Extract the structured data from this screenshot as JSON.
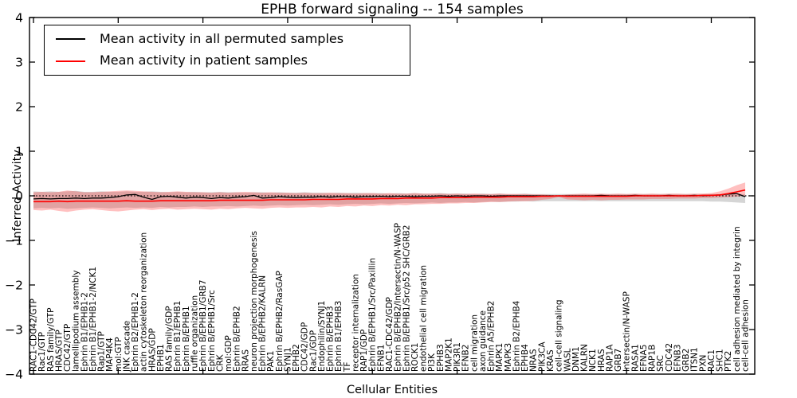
{
  "chart_data": {
    "type": "line",
    "title": "EPHB forward signaling -- 154 samples",
    "xlabel": "Cellular Entities",
    "ylabel": "Inferred Activity",
    "ylim": [
      -4,
      4
    ],
    "yticks": [
      4,
      3,
      2,
      1,
      0,
      -1,
      -2,
      -3,
      -4
    ],
    "ytick_labels": [
      "4",
      "3",
      "2",
      "1",
      "0",
      "−1",
      "−2",
      "−3",
      "−4"
    ],
    "zero_line": {
      "style": "dotted",
      "color": "#000000",
      "y": 0
    },
    "legend_position": "upper-left",
    "legend": [
      {
        "label": "Mean activity in all permuted samples",
        "color": "#000000"
      },
      {
        "label": "Mean activity in patient samples",
        "color": "#ff0000"
      }
    ],
    "colors": {
      "permuted_line": "#000000",
      "patient_line": "#ff0000",
      "permuted_band_fill": "rgba(150,150,150,0.40)",
      "patient_band_fill": "rgba(255,45,45,0.30)",
      "axis": "#000000"
    },
    "categories": [
      "RAC1-CDC42/GTP",
      "Rac1/GTP",
      "RAS family/GTP",
      "HRAS/GTP",
      "CDC42/GTP",
      "lamellipodium assembly",
      "Ephrin B1/EPHB1-2",
      "Ephrin B1/EPHB1-2/NCK1",
      "Rap1/GTP",
      "MAP4K4",
      "mol:GTP",
      "JNK cascade",
      "Ephrin B2/EPHB1-2",
      "actin cytoskeleton reorganization",
      "HRAS/GDP",
      "EPHB1",
      "RAS family/GDP",
      "Ephrin B1/EPHB1",
      "Ephrin B/EPHB1",
      "ruffle organization",
      "Ephrin B/EPHB1/GRB7",
      "Ephrin B/EPHB1/Src",
      "CRK",
      "mol:GDP",
      "Ephrin B/EPHB2",
      "RRAS",
      "neuron projection morphogenesis",
      "Ephrin B/EPHB2/KALRN",
      "PAK1",
      "Ephrin B/EPHB2/RasGAP",
      "SYNJ1",
      "EPHB2",
      "CDC42/GDP",
      "Rac1/GDP",
      "Endophilin/SYNJ1",
      "Ephrin B/EPHB3",
      "Ephrin B1/EPHB3",
      "TF",
      "receptor internalization",
      "RAP1/GDP",
      "Ephrin B/EPHB1/Src/Paxillin",
      "EFNB1",
      "RAC1-CDC42/GDP",
      "Ephrin B/EPHB2/Intersectin/N-WASP",
      "Ephrin B/EPHB1/Src/p52 SHC/GRB2",
      "ROCK1",
      "endothelial cell migration",
      "PI3K",
      "EPHB3",
      "MAP2K1",
      "PIK3R1",
      "EFNB2",
      "cell migration",
      "axon guidance",
      "Ephrin A5/EPHB2",
      "MAPK1",
      "MAPK3",
      "Ephrin B2/EPHB4",
      "EPHB4",
      "NRAS",
      "PIK3CA",
      "KRAS",
      "cell-cell signaling",
      "WASL",
      "DNM1",
      "KALRN",
      "NCK1",
      "HRAS",
      "RAP1A",
      "GRB7",
      "Intersectin/N-WASP",
      "RASA1",
      "EFNA5",
      "RAP1B",
      "SRC",
      "CDC42",
      "EFNB3",
      "GRB2",
      "ITSN1",
      "PXN",
      "RAC1",
      "SHC1",
      "PTK2",
      "cell adhesion mediated by integrin",
      "cell-cell adhesion"
    ],
    "series": [
      {
        "name": "Mean activity in all permuted samples",
        "values": [
          -0.07,
          -0.06,
          -0.07,
          -0.06,
          -0.06,
          -0.05,
          -0.06,
          -0.05,
          -0.05,
          -0.04,
          -0.02,
          0.02,
          0.03,
          -0.03,
          -0.08,
          -0.02,
          -0.01,
          -0.03,
          -0.05,
          -0.03,
          -0.04,
          -0.06,
          -0.04,
          -0.05,
          -0.03,
          -0.02,
          0.01,
          -0.05,
          -0.04,
          -0.02,
          -0.03,
          -0.04,
          -0.03,
          -0.03,
          -0.02,
          -0.03,
          -0.02,
          -0.02,
          -0.03,
          -0.02,
          -0.02,
          -0.01,
          -0.02,
          -0.01,
          -0.01,
          -0.02,
          -0.01,
          -0.01,
          0.0,
          -0.01,
          0.0,
          -0.01,
          0.0,
          0.0,
          -0.01,
          0.0,
          0.0,
          0.0,
          0.0,
          0.0,
          0.0,
          0.0,
          0.0,
          0.0,
          0.0,
          0.0,
          0.0,
          0.01,
          0.0,
          0.0,
          0.0,
          0.01,
          0.0,
          0.0,
          0.0,
          0.01,
          0.0,
          0.0,
          0.01,
          0.0,
          0.01,
          0.02,
          0.04,
          0.05,
          -0.02
        ]
      },
      {
        "name": "Mean activity in patient samples",
        "values": [
          -0.13,
          -0.13,
          -0.13,
          -0.12,
          -0.13,
          -0.12,
          -0.12,
          -0.12,
          -0.12,
          -0.12,
          -0.12,
          -0.11,
          -0.12,
          -0.12,
          -0.12,
          -0.11,
          -0.11,
          -0.11,
          -0.11,
          -0.11,
          -0.11,
          -0.11,
          -0.1,
          -0.1,
          -0.1,
          -0.1,
          -0.1,
          -0.1,
          -0.09,
          -0.09,
          -0.09,
          -0.09,
          -0.09,
          -0.08,
          -0.08,
          -0.08,
          -0.08,
          -0.07,
          -0.07,
          -0.07,
          -0.07,
          -0.06,
          -0.06,
          -0.06,
          -0.05,
          -0.05,
          -0.05,
          -0.05,
          -0.04,
          -0.04,
          -0.04,
          -0.04,
          -0.03,
          -0.03,
          -0.03,
          -0.03,
          -0.02,
          -0.02,
          -0.02,
          -0.02,
          -0.01,
          -0.01,
          0.0,
          -0.01,
          -0.01,
          -0.01,
          -0.01,
          -0.01,
          -0.01,
          -0.01,
          -0.01,
          0.0,
          0.0,
          0.0,
          0.0,
          0.0,
          0.0,
          0.0,
          0.0,
          0.01,
          0.01,
          0.02,
          0.05,
          0.09,
          0.13
        ]
      }
    ],
    "bands": [
      {
        "name": "permuted-samples-band",
        "upper": [
          0.1,
          0.09,
          0.1,
          0.09,
          0.1,
          0.11,
          0.09,
          0.09,
          0.1,
          0.09,
          0.09,
          0.1,
          0.09,
          0.09,
          0.1,
          0.09,
          0.08,
          0.09,
          0.08,
          0.09,
          0.08,
          0.08,
          0.09,
          0.08,
          0.08,
          0.07,
          0.08,
          0.08,
          0.07,
          0.08,
          0.07,
          0.07,
          0.08,
          0.07,
          0.07,
          0.06,
          0.07,
          0.06,
          0.07,
          0.06,
          0.06,
          0.06,
          0.05,
          0.06,
          0.05,
          0.06,
          0.05,
          0.05,
          0.06,
          0.05,
          0.05,
          0.05,
          0.04,
          0.05,
          0.04,
          0.05,
          0.04,
          0.04,
          0.05,
          0.04,
          0.04,
          0.04,
          0.04,
          0.04,
          0.04,
          0.04,
          0.04,
          0.04,
          0.04,
          0.04,
          0.04,
          0.04,
          0.04,
          0.04,
          0.04,
          0.04,
          0.04,
          0.04,
          0.04,
          0.04,
          0.04,
          0.04,
          0.04,
          0.05,
          0.03
        ],
        "lower": [
          -0.28,
          -0.27,
          -0.28,
          -0.27,
          -0.29,
          -0.28,
          -0.27,
          -0.26,
          -0.27,
          -0.28,
          -0.27,
          -0.26,
          -0.27,
          -0.26,
          -0.27,
          -0.25,
          -0.26,
          -0.25,
          -0.25,
          -0.24,
          -0.25,
          -0.24,
          -0.24,
          -0.23,
          -0.24,
          -0.23,
          -0.22,
          -0.23,
          -0.22,
          -0.21,
          -0.22,
          -0.21,
          -0.2,
          -0.21,
          -0.2,
          -0.19,
          -0.2,
          -0.19,
          -0.18,
          -0.19,
          -0.18,
          -0.17,
          -0.18,
          -0.17,
          -0.16,
          -0.17,
          -0.16,
          -0.15,
          -0.16,
          -0.15,
          -0.15,
          -0.14,
          -0.15,
          -0.14,
          -0.13,
          -0.14,
          -0.13,
          -0.13,
          -0.12,
          -0.13,
          -0.12,
          -0.12,
          -0.12,
          -0.12,
          -0.12,
          -0.12,
          -0.12,
          -0.12,
          -0.12,
          -0.12,
          -0.12,
          -0.12,
          -0.12,
          -0.12,
          -0.12,
          -0.12,
          -0.12,
          -0.12,
          -0.12,
          -0.12,
          -0.13,
          -0.13,
          -0.14,
          -0.15,
          -0.16
        ]
      },
      {
        "name": "patient-samples-band",
        "upper": [
          0.08,
          0.09,
          0.08,
          0.09,
          0.12,
          0.1,
          0.08,
          0.08,
          0.09,
          0.1,
          0.11,
          0.12,
          0.11,
          0.1,
          0.09,
          0.08,
          0.09,
          0.1,
          0.09,
          0.08,
          0.08,
          0.07,
          0.08,
          0.07,
          0.08,
          0.09,
          0.08,
          0.07,
          0.08,
          0.07,
          0.07,
          0.06,
          0.07,
          0.06,
          0.06,
          0.07,
          0.06,
          0.06,
          0.05,
          0.06,
          0.06,
          0.05,
          0.06,
          0.05,
          0.05,
          0.06,
          0.05,
          0.05,
          0.05,
          0.04,
          0.05,
          0.04,
          0.05,
          0.04,
          0.04,
          0.05,
          0.04,
          0.04,
          0.04,
          0.03,
          0.03,
          0.02,
          0.01,
          0.03,
          0.04,
          0.05,
          0.04,
          0.05,
          0.04,
          0.05,
          0.04,
          0.05,
          0.04,
          0.05,
          0.04,
          0.05,
          0.05,
          0.04,
          0.05,
          0.05,
          0.06,
          0.1,
          0.16,
          0.24,
          0.3
        ],
        "lower": [
          -0.32,
          -0.33,
          -0.31,
          -0.34,
          -0.36,
          -0.33,
          -0.31,
          -0.3,
          -0.32,
          -0.34,
          -0.35,
          -0.33,
          -0.31,
          -0.3,
          -0.32,
          -0.3,
          -0.29,
          -0.31,
          -0.3,
          -0.29,
          -0.3,
          -0.31,
          -0.29,
          -0.3,
          -0.28,
          -0.27,
          -0.28,
          -0.29,
          -0.27,
          -0.26,
          -0.27,
          -0.26,
          -0.26,
          -0.25,
          -0.26,
          -0.24,
          -0.25,
          -0.23,
          -0.24,
          -0.22,
          -0.23,
          -0.21,
          -0.22,
          -0.2,
          -0.21,
          -0.19,
          -0.19,
          -0.18,
          -0.18,
          -0.17,
          -0.17,
          -0.16,
          -0.16,
          -0.15,
          -0.14,
          -0.14,
          -0.13,
          -0.12,
          -0.12,
          -0.11,
          -0.09,
          -0.07,
          -0.03,
          -0.08,
          -0.09,
          -0.1,
          -0.09,
          -0.1,
          -0.09,
          -0.09,
          -0.08,
          -0.08,
          -0.08,
          -0.07,
          -0.07,
          -0.07,
          -0.06,
          -0.06,
          -0.06,
          -0.05,
          -0.05,
          -0.04,
          -0.03,
          -0.02,
          0.0
        ]
      }
    ]
  }
}
